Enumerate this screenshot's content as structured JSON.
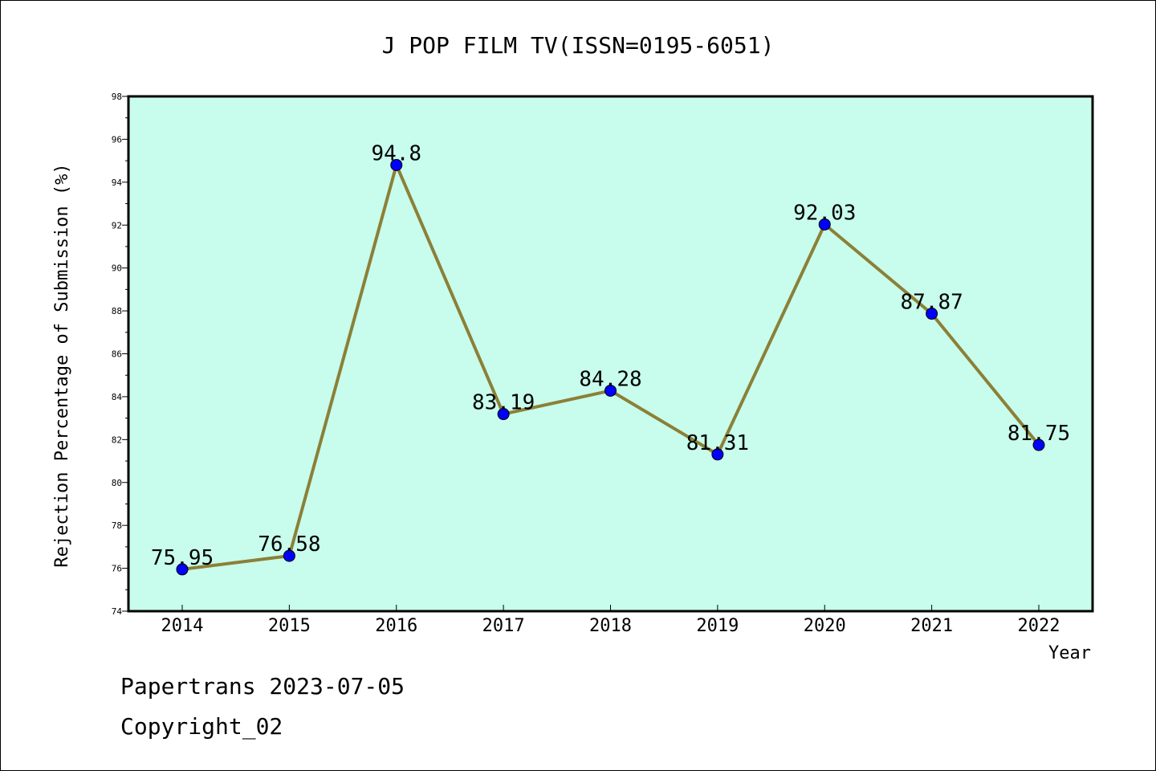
{
  "chart_data": {
    "type": "line",
    "title": "J POP FILM TV(ISSN=0195-6051)",
    "xlabel": "Year",
    "ylabel": "Rejection Percentage of Submission (%)",
    "categories": [
      "2014",
      "2015",
      "2016",
      "2017",
      "2018",
      "2019",
      "2020",
      "2021",
      "2022"
    ],
    "values": [
      75.95,
      76.58,
      94.8,
      83.19,
      84.28,
      81.31,
      92.03,
      87.87,
      81.75
    ],
    "value_labels": [
      "75.95",
      "76.58",
      "94.8",
      "83.19",
      "84.28",
      "81.31",
      "92.03",
      "87.87",
      "81.75"
    ],
    "ylim": [
      74,
      98
    ],
    "yticks": [
      "74",
      "76",
      "78",
      "80",
      "82",
      "84",
      "86",
      "88",
      "90",
      "92",
      "94",
      "96",
      "98"
    ],
    "grid": false,
    "colors": {
      "plot_background": "#c8fcec",
      "line": "#8b8038",
      "marker": "#0000ff"
    }
  },
  "footer": {
    "line1": "Papertrans 2023-07-05",
    "line2": "Copyright_02"
  }
}
